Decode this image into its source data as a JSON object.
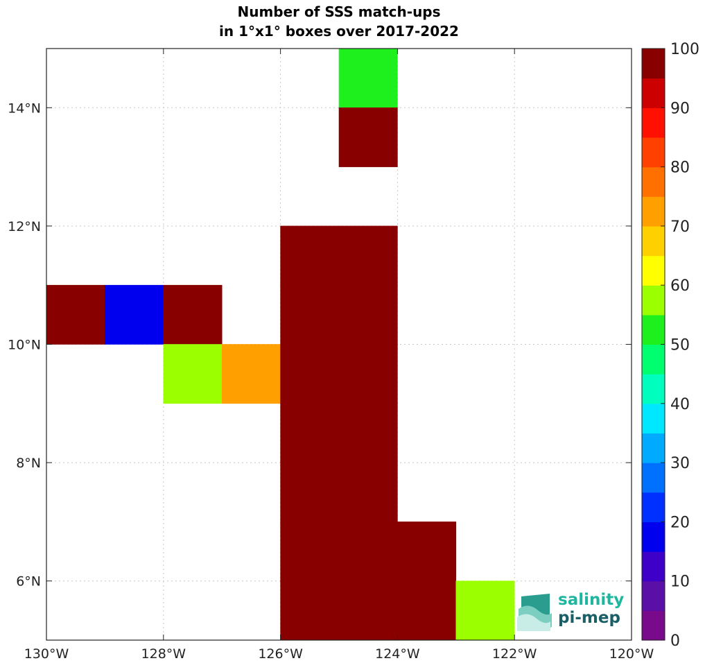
{
  "chart_data": {
    "type": "heatmap",
    "title": "Number of SSS match-ups",
    "subtitle": "in 1°x1° boxes over 2017-2022",
    "xlim": [
      -130,
      -120
    ],
    "ylim": [
      5,
      15
    ],
    "grid": true,
    "x_ticks": [
      {
        "value": -130,
        "label": "130°W"
      },
      {
        "value": -128,
        "label": "128°W"
      },
      {
        "value": -126,
        "label": "126°W"
      },
      {
        "value": -124,
        "label": "124°W"
      },
      {
        "value": -122,
        "label": "122°W"
      },
      {
        "value": -120,
        "label": "120°W"
      }
    ],
    "y_ticks": [
      {
        "value": 6,
        "label": "6°N"
      },
      {
        "value": 8,
        "label": "8°N"
      },
      {
        "value": 10,
        "label": "10°N"
      },
      {
        "value": 12,
        "label": "12°N"
      },
      {
        "value": 14,
        "label": "14°N"
      }
    ],
    "cells": [
      {
        "lon": -125,
        "lat": 14,
        "value": 53
      },
      {
        "lon": -125,
        "lat": 13,
        "value": 100
      },
      {
        "lon": -126,
        "lat": 11,
        "value": 100
      },
      {
        "lon": -125,
        "lat": 11,
        "value": 100
      },
      {
        "lon": -130,
        "lat": 10,
        "value": 100
      },
      {
        "lon": -129,
        "lat": 10,
        "value": 18
      },
      {
        "lon": -128,
        "lat": 10,
        "value": 100
      },
      {
        "lon": -126,
        "lat": 10,
        "value": 100
      },
      {
        "lon": -125,
        "lat": 10,
        "value": 100
      },
      {
        "lon": -128,
        "lat": 9,
        "value": 58
      },
      {
        "lon": -127,
        "lat": 9,
        "value": 72
      },
      {
        "lon": -126,
        "lat": 9,
        "value": 100
      },
      {
        "lon": -125,
        "lat": 9,
        "value": 100
      },
      {
        "lon": -126,
        "lat": 8,
        "value": 100
      },
      {
        "lon": -125,
        "lat": 8,
        "value": 100
      },
      {
        "lon": -126,
        "lat": 7,
        "value": 100
      },
      {
        "lon": -125,
        "lat": 7,
        "value": 100
      },
      {
        "lon": -126,
        "lat": 6,
        "value": 100
      },
      {
        "lon": -125,
        "lat": 6,
        "value": 100
      },
      {
        "lon": -124,
        "lat": 6,
        "value": 100
      },
      {
        "lon": -126,
        "lat": 5,
        "value": 100
      },
      {
        "lon": -125,
        "lat": 5,
        "value": 100
      },
      {
        "lon": -124,
        "lat": 5,
        "value": 100
      },
      {
        "lon": -123,
        "lat": 5,
        "value": 58
      }
    ],
    "colorbar": {
      "min": 0,
      "max": 100,
      "ticks": [
        0,
        10,
        20,
        30,
        40,
        50,
        60,
        70,
        80,
        90,
        100
      ],
      "colors": [
        "#7a0a8c",
        "#5a0fa6",
        "#3e00c8",
        "#0000ef",
        "#0030ff",
        "#0070ff",
        "#00aaff",
        "#00e8ff",
        "#00ffbe",
        "#00ff6e",
        "#1ef01e",
        "#9cff00",
        "#ffff00",
        "#ffd000",
        "#ffa000",
        "#ff7000",
        "#ff4000",
        "#ff1000",
        "#cc0000",
        "#880000"
      ]
    }
  },
  "logo": {
    "line1": "salinity",
    "line2": "pi-mep",
    "color1": "#1fb6a0",
    "color2": "#1a5e66"
  }
}
